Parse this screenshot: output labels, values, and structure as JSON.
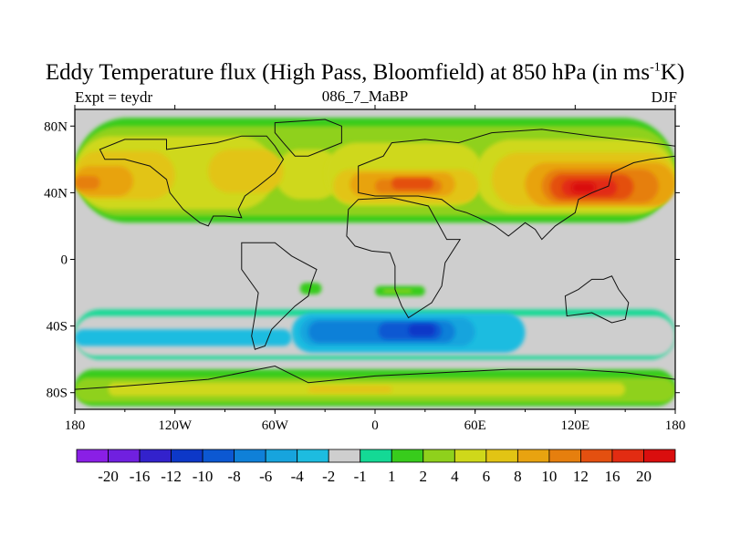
{
  "title": {
    "text": "Eddy Temperature flux (High Pass, Bloomfield) at 850 hPa (in ms",
    "unit_sup": "-1",
    "unit_end": "K)"
  },
  "left_label": "Expt = teydr",
  "center_label": "086_7_MaBP",
  "right_label": "DJF",
  "chart_data": {
    "type": "heatmap",
    "title": "Eddy Temperature flux (High Pass, Bloomfield) at 850 hPa (in ms-1K)",
    "projection": "cylindrical equidistant",
    "x_range": [
      -180,
      180
    ],
    "y_range": [
      -90,
      90
    ],
    "x_ticks": [
      {
        "value": -180,
        "label": "180"
      },
      {
        "value": -120,
        "label": "120W"
      },
      {
        "value": -60,
        "label": "60W"
      },
      {
        "value": 0,
        "label": "0"
      },
      {
        "value": 60,
        "label": "60E"
      },
      {
        "value": 120,
        "label": "120E"
      },
      {
        "value": 180,
        "label": "180"
      }
    ],
    "y_ticks": [
      {
        "value": 80,
        "label": "80N"
      },
      {
        "value": 40,
        "label": "40N"
      },
      {
        "value": 0,
        "label": "0"
      },
      {
        "value": -40,
        "label": "40S"
      },
      {
        "value": -80,
        "label": "80S"
      }
    ],
    "colorbar": {
      "levels": [
        "-20",
        "-16",
        "-12",
        "-10",
        "-8",
        "-6",
        "-4",
        "-2",
        "-1",
        "1",
        "2",
        "4",
        "6",
        "8",
        "10",
        "12",
        "16",
        "20"
      ],
      "colors": [
        "#8a1fe6",
        "#7020e0",
        "#3322cc",
        "#0d38c8",
        "#0c58d2",
        "#0f80d8",
        "#17a4dd",
        "#1dbce0",
        "#cecece",
        "#14d995",
        "#38cc1c",
        "#8fd11c",
        "#cfd81a",
        "#e2c414",
        "#e8a310",
        "#e67f0e",
        "#e45010",
        "#e22c12",
        "#da0e0e"
      ]
    },
    "features": [
      {
        "name": "northern-storm-track",
        "lon_range": [
          -180,
          180
        ],
        "lat_range": [
          20,
          85
        ],
        "typical_level": "4"
      },
      {
        "name": "north-pacific-maximum",
        "lon_center": 140,
        "lat_center": 42,
        "peak": "16"
      },
      {
        "name": "central-asia-maximum",
        "lon_center": 30,
        "lat_center": 45,
        "peak": "12"
      },
      {
        "name": "southern-storm-track",
        "lon_range": [
          -180,
          180
        ],
        "lat_range": [
          -58,
          -30
        ],
        "typical_level": "-4"
      },
      {
        "name": "south-atlantic-minimum",
        "lon_center": 28,
        "lat_center": -42,
        "peak": "-12"
      },
      {
        "name": "antarctic-margin-band",
        "lon_range": [
          -180,
          180
        ],
        "lat_range": [
          -86,
          -66
        ],
        "typical_level": "2"
      }
    ]
  }
}
